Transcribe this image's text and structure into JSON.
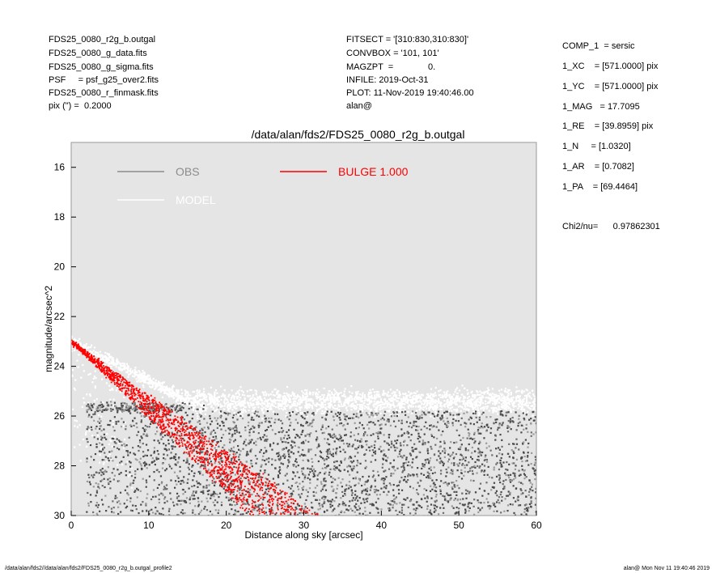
{
  "header": {
    "left": [
      "FDS25_0080_r2g_b.outgal",
      "FDS25_0080_g_data.fits",
      "FDS25_0080_g_sigma.fits",
      "PSF     = psf_g25_over2.fits",
      "FDS25_0080_r_finmask.fits",
      "pix (\") =  0.2000"
    ],
    "middle": [
      "FITSECT = '[310:830,310:830]'",
      "CONVBOX = '101, 101'",
      "MAGZPT  =              0.",
      "INFILE: 2019-Oct-31",
      "PLOT: 11-Nov-2019 19:40:46.00",
      "alan@"
    ]
  },
  "params": [
    "COMP_1  = sersic",
    "1_XC    = [571.0000] pix",
    "1_YC    = [571.0000] pix",
    "1_MAG   = 17.7095",
    "1_RE    = [39.8959] pix",
    "1_N     = [1.0320]",
    "1_AR    = [0.7082]",
    "1_PA    = [69.4464]"
  ],
  "chi2": "Chi2/nu=      0.97862301",
  "footer": {
    "left": "/data/alan/fds2//data/alan/fds2/FDS25_0080_r2g_b.outgal_profile2",
    "right": "alan@  Mon Nov 11 19:40:46 2019"
  },
  "chart_data": {
    "type": "scatter",
    "title": "/data/alan/fds2/FDS25_0080_r2g_b.outgal",
    "xlabel": "Distance along sky [arcsec]",
    "ylabel": "magnitude/arcsec^2",
    "xlim": [
      0,
      60
    ],
    "ylim": [
      30,
      15
    ],
    "x_ticks": [
      0,
      10,
      20,
      30,
      40,
      50,
      60
    ],
    "y_ticks": [
      16,
      18,
      20,
      22,
      24,
      26,
      28,
      30
    ],
    "background": "#e5e5e5",
    "legend": [
      {
        "name": "OBS",
        "color": "#8c8c8c"
      },
      {
        "name": "MODEL",
        "color": "#ffffff"
      },
      {
        "name": "BULGE  1.000",
        "color": "#ff0000"
      }
    ],
    "series": [
      {
        "name": "OBS",
        "color": "#555555",
        "description_range": {
          "start_mag": 23.0,
          "floor_mag_min": 25.5,
          "floor_mag_max": 30
        }
      },
      {
        "name": "MODEL",
        "color": "#ffffff",
        "start_mag": 23.0,
        "noise_floor_mag": 25.0
      },
      {
        "name": "BULGE  1.000",
        "color": "#ff0000",
        "start_mag": 23.0,
        "end_x_upper": 23,
        "end_x_lower": 32,
        "end_mag": 30
      }
    ]
  }
}
